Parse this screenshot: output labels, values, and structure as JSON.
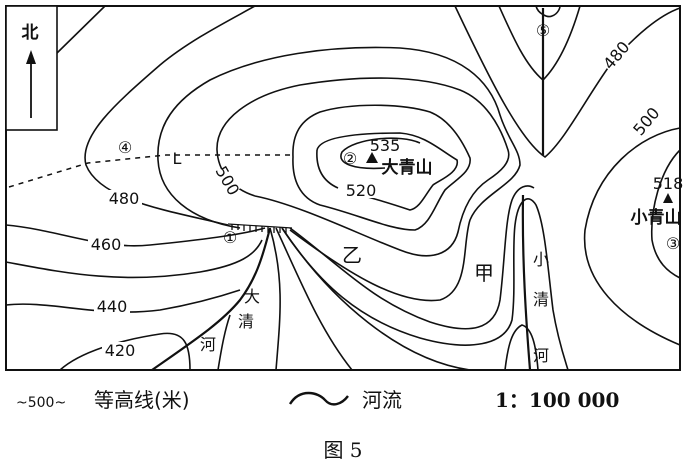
{
  "map": {
    "north_label": "北",
    "contour_labels": {
      "c420": "420",
      "c440": "440",
      "c460": "460",
      "c480_left": "480",
      "c500_left": "500",
      "c520": "520",
      "c535": "535",
      "c480_right": "480",
      "c500_right": "500",
      "c518": "518"
    },
    "points": {
      "p1": "①",
      "p2": "②",
      "p3": "③",
      "p4": "④",
      "p5": "⑤",
      "L": "L",
      "yi": "乙",
      "jia": "甲"
    },
    "peaks": {
      "daqing": "大青山",
      "xiaoqing": "小青山"
    },
    "rivers": {
      "daqing_river": [
        "大",
        "清",
        "河"
      ],
      "xiaoqing_river": [
        "小",
        "清",
        "河"
      ]
    }
  },
  "legend": {
    "contour_sample": "~500~",
    "contour_label": "等高线(米)",
    "river_label": "河流",
    "scale": "1：100 000"
  },
  "caption": "图 5"
}
